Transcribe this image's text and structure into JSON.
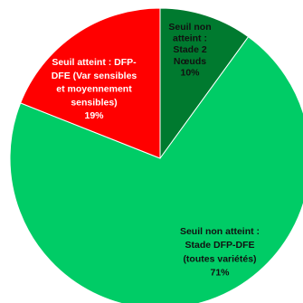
{
  "chart_data": {
    "type": "pie",
    "title": "",
    "legend": "none",
    "slices": [
      {
        "value": 10,
        "label_lines": [
          "Seuil non",
          "atteint :",
          "Stade 2",
          "Nœuds",
          "10%"
        ],
        "color": "#007A2F",
        "text_color": "#111111"
      },
      {
        "value": 71,
        "label_lines": [
          "Seuil non atteint :",
          "Stade DFP-DFE",
          "(toutes variétés)",
          "71%"
        ],
        "color": "#00CC66",
        "text_color": "#111111"
      },
      {
        "value": 19,
        "label_lines": [
          "Seuil atteint : DFP-",
          "DFE (Var sensibles",
          "et moyennement",
          "sensibles)",
          "19%"
        ],
        "color": "#FF0000",
        "text_color": "#ffffff"
      }
    ]
  }
}
